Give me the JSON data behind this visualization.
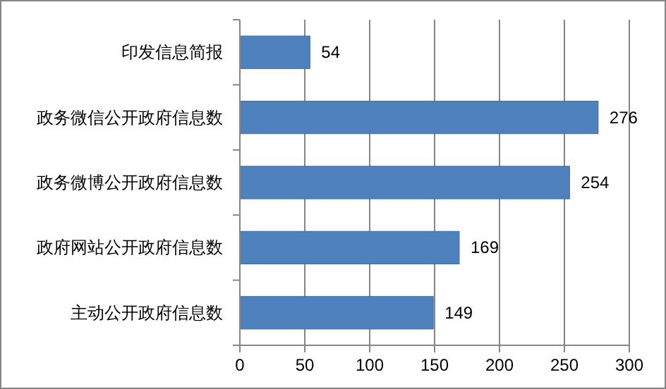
{
  "chart_data": {
    "type": "bar",
    "orientation": "horizontal",
    "categories": [
      "印发信息简报",
      "政务微信公开政府信息数",
      "政务微博公开政府信息数",
      "政府网站公开政府信息数",
      "主动公开政府信息数"
    ],
    "values": [
      54,
      276,
      254,
      169,
      149
    ],
    "color": "#4f81bd",
    "xlim": [
      0,
      300
    ],
    "xticks": [
      0,
      50,
      100,
      150,
      200,
      250,
      300
    ],
    "grid": "x",
    "data_labels": true
  }
}
